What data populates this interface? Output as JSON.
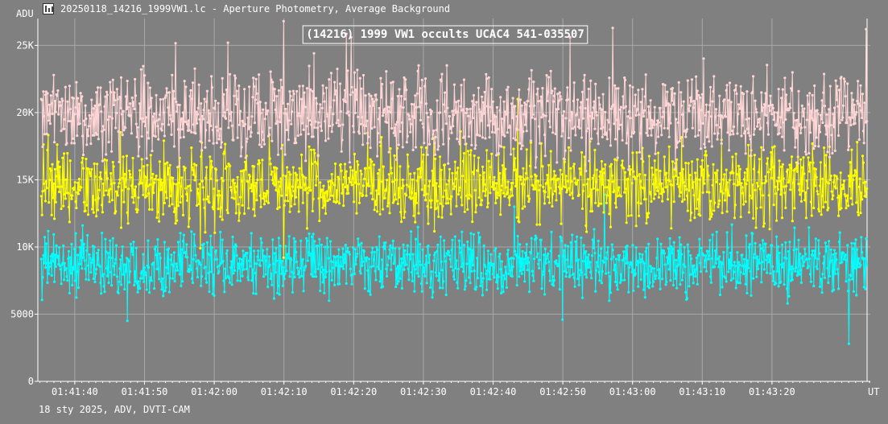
{
  "window": {
    "title": "20250118_14216_1999VW1.lc - Aperture Photometry, Average Background",
    "icon": "lightcurve-app-icon"
  },
  "footer": {
    "text": "18 sty 2025, ADV, DVTI-CAM"
  },
  "colors": {
    "background": "#808080",
    "grid": "#a8a8a8",
    "text": "#ffffff",
    "target": "#ffd5d5",
    "comparison": "#ffff00",
    "background_series": "#00ffff"
  },
  "chart_data": {
    "type": "line",
    "title": "(14216) 1999 VW1 occults UCAC4 541-035507",
    "ylabel": "ADU",
    "xlabel": "UT",
    "ylim": [
      0,
      27000
    ],
    "yticks": [
      0,
      5000,
      10000,
      15000,
      20000,
      25000
    ],
    "ytick_labels": [
      "0",
      "5000",
      "10K",
      "15K",
      "20K",
      "25K"
    ],
    "xlim_seconds": [
      94.7,
      214.1
    ],
    "xticks_seconds": [
      100,
      110,
      120,
      130,
      140,
      150,
      160,
      170,
      180,
      190,
      200
    ],
    "xtick_labels": [
      "01:41:40",
      "01:41:50",
      "01:42:00",
      "01:42:10",
      "01:42:20",
      "01:42:30",
      "01:42:40",
      "01:42:50",
      "01:43:00",
      "01:43:10",
      "01:43:20"
    ],
    "frame_count": 1200,
    "grid": true,
    "series": [
      {
        "key": "target",
        "color": "#ffd5d5",
        "mean": 19800,
        "noise": 1900,
        "peaks": [
          [
            130.0,
            26800
          ],
          [
            177.2,
            26300
          ],
          [
            171.0,
            25600
          ],
          [
            122.0,
            25200
          ]
        ],
        "dips": []
      },
      {
        "key": "comparison",
        "color": "#ffff00",
        "mean": 14600,
        "noise": 1700,
        "peaks": [
          [
            163.5,
            21000
          ]
        ],
        "dips": [
          [
            130.0,
            9200
          ],
          [
            118.0,
            9900
          ]
        ]
      },
      {
        "key": "background_series",
        "color": "#00ffff",
        "mean": 8700,
        "noise": 1400,
        "peaks": [
          [
            176.0,
            13900
          ],
          [
            163.0,
            13000
          ]
        ],
        "dips": [
          [
            211.0,
            2800
          ],
          [
            107.5,
            4500
          ],
          [
            170.0,
            4600
          ]
        ]
      }
    ]
  }
}
